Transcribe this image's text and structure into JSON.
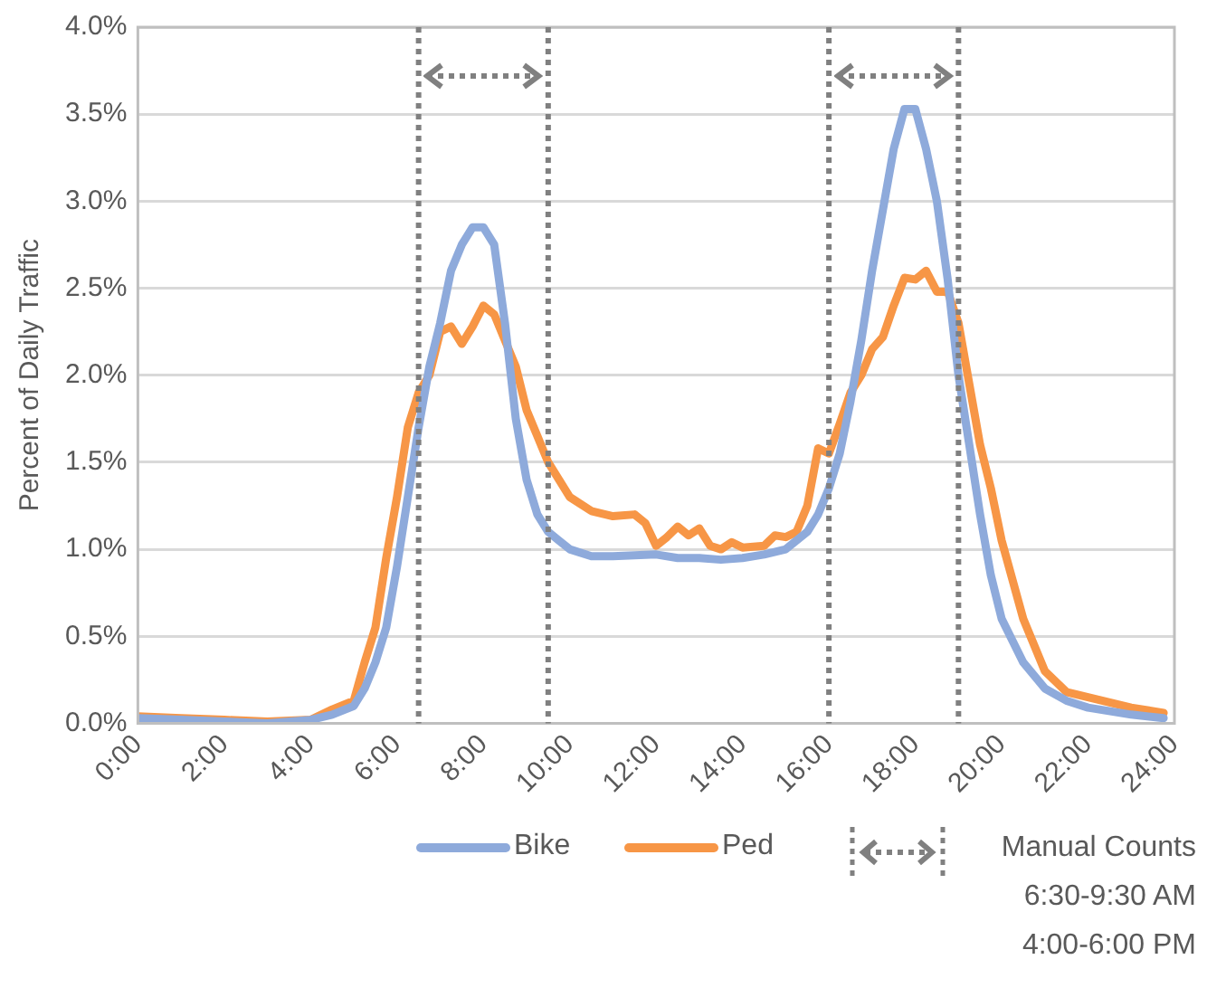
{
  "chart_data": {
    "type": "line",
    "ylabel": "Percent of Daily Traffic",
    "grid": "y",
    "legend": "bottom",
    "marker": "none",
    "line_style": "solid",
    "xlim": [
      0,
      24
    ],
    "xticks": [
      {
        "value": 0,
        "label": "0:00"
      },
      {
        "value": 2,
        "label": "2:00"
      },
      {
        "value": 4,
        "label": "4:00"
      },
      {
        "value": 6,
        "label": "6:00"
      },
      {
        "value": 8,
        "label": "8:00"
      },
      {
        "value": 10,
        "label": "10:00"
      },
      {
        "value": 12,
        "label": "12:00"
      },
      {
        "value": 14,
        "label": "14:00"
      },
      {
        "value": 16,
        "label": "16:00"
      },
      {
        "value": 18,
        "label": "18:00"
      },
      {
        "value": 20,
        "label": "20:00"
      },
      {
        "value": 22,
        "label": "22:00"
      },
      {
        "value": 24,
        "label": "24:00"
      }
    ],
    "ylim": [
      0,
      4
    ],
    "yticks": [
      {
        "value": 0,
        "label": "0.0%"
      },
      {
        "value": 0.5,
        "label": "0.5%"
      },
      {
        "value": 1,
        "label": "1.0%"
      },
      {
        "value": 1.5,
        "label": "1.5%"
      },
      {
        "value": 2,
        "label": "2.0%"
      },
      {
        "value": 2.5,
        "label": "2.5%"
      },
      {
        "value": 3,
        "label": "3.0%"
      },
      {
        "value": 3.5,
        "label": "3.5%"
      },
      {
        "value": 4,
        "label": "4.0%"
      }
    ],
    "series": [
      {
        "name": "Bike",
        "color": "#8eaadb",
        "x": [
          0,
          1,
          2,
          3,
          4,
          4.5,
          5,
          5.25,
          5.5,
          5.75,
          6,
          6.25,
          6.5,
          6.75,
          7,
          7.25,
          7.5,
          7.75,
          8,
          8.25,
          8.5,
          8.75,
          9,
          9.25,
          9.5,
          9.75,
          10,
          10.5,
          11,
          12,
          12.5,
          13,
          13.5,
          14,
          14.5,
          15,
          15.5,
          15.75,
          16,
          16.25,
          16.5,
          16.75,
          17,
          17.25,
          17.5,
          17.75,
          18,
          18.25,
          18.5,
          18.75,
          19,
          19.25,
          19.5,
          19.75,
          20,
          20.5,
          21,
          21.5,
          22,
          23,
          23.75
        ],
        "values": [
          0.03,
          0.02,
          0.01,
          0,
          0.02,
          0.05,
          0.1,
          0.2,
          0.35,
          0.55,
          0.9,
          1.3,
          1.7,
          2.05,
          2.3,
          2.6,
          2.75,
          2.85,
          2.85,
          2.75,
          2.3,
          1.75,
          1.4,
          1.2,
          1.1,
          1.05,
          1,
          0.96,
          0.96,
          0.97,
          0.95,
          0.95,
          0.94,
          0.95,
          0.97,
          1,
          1.1,
          1.2,
          1.35,
          1.55,
          1.85,
          2.2,
          2.6,
          2.95,
          3.3,
          3.53,
          3.53,
          3.3,
          3,
          2.55,
          2,
          1.6,
          1.2,
          0.85,
          0.6,
          0.35,
          0.2,
          0.13,
          0.09,
          0.05,
          0.03
        ]
      },
      {
        "name": "Ped",
        "color": "#f79646",
        "x": [
          0,
          1,
          2,
          3,
          4,
          4.5,
          5,
          5.25,
          5.5,
          5.75,
          6,
          6.25,
          6.5,
          6.75,
          7,
          7.25,
          7.5,
          7.75,
          8,
          8.25,
          8.5,
          8.75,
          9,
          9.25,
          9.5,
          9.75,
          10,
          10.5,
          11,
          11.5,
          11.75,
          12,
          12.25,
          12.5,
          12.75,
          13,
          13.25,
          13.5,
          13.75,
          14,
          14.5,
          14.75,
          15,
          15.25,
          15.5,
          15.75,
          16,
          16.25,
          16.5,
          16.75,
          17,
          17.25,
          17.5,
          17.75,
          18,
          18.25,
          18.5,
          18.75,
          19,
          19.25,
          19.5,
          19.75,
          20,
          20.5,
          21,
          21.5,
          22,
          22.5,
          23,
          23.75
        ],
        "values": [
          0.04,
          0.03,
          0.02,
          0.01,
          0.02,
          0.08,
          0.13,
          0.35,
          0.55,
          0.95,
          1.3,
          1.7,
          1.9,
          2,
          2.25,
          2.28,
          2.18,
          2.28,
          2.4,
          2.35,
          2.2,
          2.05,
          1.8,
          1.65,
          1.5,
          1.4,
          1.3,
          1.22,
          1.19,
          1.2,
          1.15,
          1.02,
          1.07,
          1.13,
          1.08,
          1.12,
          1.02,
          1,
          1.04,
          1.01,
          1.02,
          1.08,
          1.07,
          1.1,
          1.25,
          1.58,
          1.55,
          1.72,
          1.9,
          2,
          2.15,
          2.22,
          2.4,
          2.56,
          2.55,
          2.6,
          2.48,
          2.48,
          2.3,
          1.95,
          1.6,
          1.35,
          1.05,
          0.6,
          0.3,
          0.18,
          0.15,
          0.12,
          0.09,
          0.06
        ]
      }
    ],
    "ref_lines": [
      {
        "axis": "x",
        "value": 6.5,
        "color": "#808080",
        "line_style": "dotted"
      },
      {
        "axis": "x",
        "value": 9.5,
        "color": "#808080",
        "line_style": "dotted"
      },
      {
        "axis": "x",
        "value": 16,
        "color": "#808080",
        "line_style": "dotted"
      },
      {
        "axis": "x",
        "value": 19,
        "color": "#808080",
        "line_style": "dotted"
      }
    ],
    "annotations": [
      "Manual Counts",
      "6:30-9:30 AM",
      "4:00-6:00 PM"
    ]
  }
}
